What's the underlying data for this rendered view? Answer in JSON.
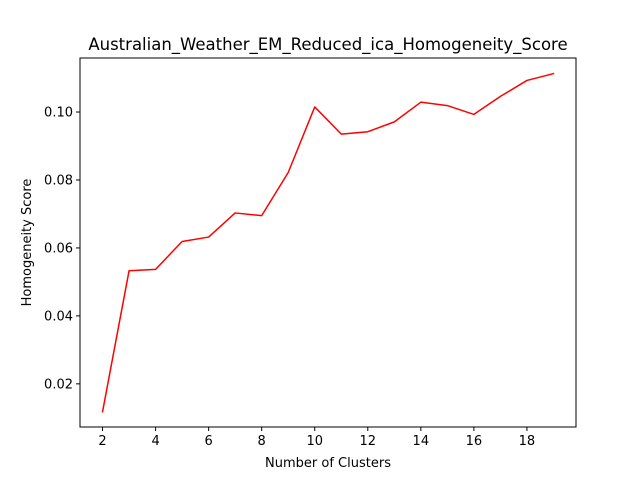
{
  "chart_data": {
    "type": "line",
    "title": "Australian_Weather_EM_Reduced_ica_Homogeneity_Score",
    "xlabel": "Number of Clusters",
    "ylabel": "Homogeneity Score",
    "xlim": [
      1.15,
      19.85
    ],
    "ylim": [
      0.0073,
      0.1159
    ],
    "xticks": [
      2,
      4,
      6,
      8,
      10,
      12,
      14,
      16,
      18
    ],
    "yticks": [
      0.02,
      0.04,
      0.06,
      0.08,
      0.1
    ],
    "ytick_labels": [
      "0.02",
      "0.04",
      "0.06",
      "0.08",
      "0.10"
    ],
    "grid": false,
    "series": [
      {
        "color": "#ff0000",
        "x": [
          2,
          3,
          4,
          5,
          6,
          7,
          8,
          9,
          10,
          11,
          12,
          13,
          14,
          15,
          16,
          17,
          18,
          19
        ],
        "y": [
          0.0118,
          0.0533,
          0.0537,
          0.0619,
          0.0632,
          0.0703,
          0.0695,
          0.0822,
          0.1015,
          0.0935,
          0.0942,
          0.0971,
          0.1029,
          0.1019,
          0.0993,
          0.1046,
          0.1093,
          0.1113
        ]
      }
    ]
  }
}
